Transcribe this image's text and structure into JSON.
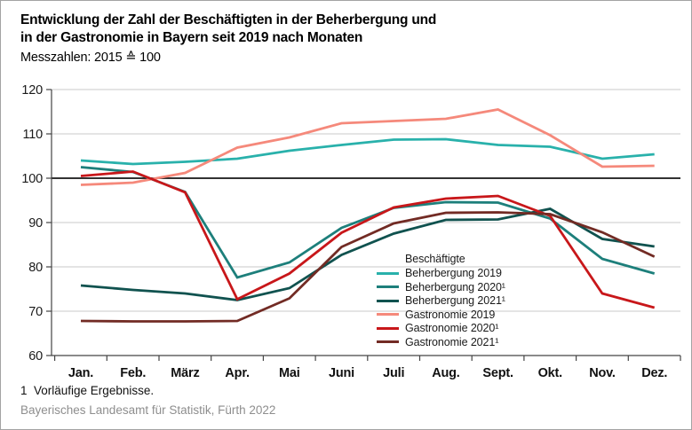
{
  "header": {
    "title_line1": "Entwicklung der Zahl der Beschäftigten in der Beherbergung und",
    "title_line2": "in der Gastronomie in Bayern seit 2019 nach Monaten",
    "subtitle": "Messzahlen: 2015 ≙ 100"
  },
  "chart_data": {
    "type": "line",
    "title": "Entwicklung der Zahl der Beschäftigten in der Beherbergung und in der Gastronomie in Bayern seit 2019 nach Monaten",
    "subtitle": "Messzahlen: 2015 ≙ 100",
    "categories": [
      "Jan.",
      "Feb.",
      "März",
      "Apr.",
      "Mai",
      "Juni",
      "Juli",
      "Aug.",
      "Sept.",
      "Okt.",
      "Nov.",
      "Dez."
    ],
    "y_ticks": [
      60,
      70,
      80,
      90,
      100,
      110,
      120
    ],
    "ylim": [
      60,
      120
    ],
    "reference_line": 100,
    "grid": true,
    "legend_title": "Beschäftigte",
    "legend_position": "inside-right-middle",
    "series": [
      {
        "name": "Beherbergung 2019",
        "color": "#29b1ab",
        "values": [
          104.0,
          103.2,
          103.7,
          104.4,
          106.2,
          107.5,
          108.7,
          108.8,
          107.5,
          107.1,
          104.4,
          105.4
        ]
      },
      {
        "name": "Beherbergung 2020¹",
        "color": "#1d7f7b",
        "values": [
          102.5,
          101.4,
          96.9,
          77.6,
          81.0,
          88.8,
          93.3,
          94.6,
          94.5,
          90.9,
          81.8,
          78.5
        ]
      },
      {
        "name": "Beherbergung 2021¹",
        "color": "#10524f",
        "values": [
          75.8,
          74.8,
          74.0,
          72.5,
          75.2,
          82.7,
          87.5,
          90.6,
          90.7,
          93.1,
          86.3,
          84.6
        ]
      },
      {
        "name": "Gastronomie 2019",
        "color": "#f5897b",
        "values": [
          98.5,
          99.0,
          101.2,
          106.9,
          109.2,
          112.4,
          112.9,
          113.4,
          115.5,
          109.7,
          102.6,
          102.8
        ]
      },
      {
        "name": "Gastronomie 2020¹",
        "color": "#c8171a",
        "values": [
          100.5,
          101.5,
          96.8,
          72.7,
          78.5,
          87.7,
          93.4,
          95.4,
          96.0,
          91.5,
          74.0,
          70.8
        ]
      },
      {
        "name": "Gastronomie 2021¹",
        "color": "#722b24",
        "values": [
          67.8,
          67.7,
          67.7,
          67.8,
          72.9,
          84.5,
          89.8,
          92.2,
          92.3,
          91.9,
          87.8,
          82.3
        ]
      }
    ]
  },
  "footnote": "1  Vorläufige Ergebnisse.",
  "source": "Bayerisches Landesamt für Statistik, Fürth 2022"
}
